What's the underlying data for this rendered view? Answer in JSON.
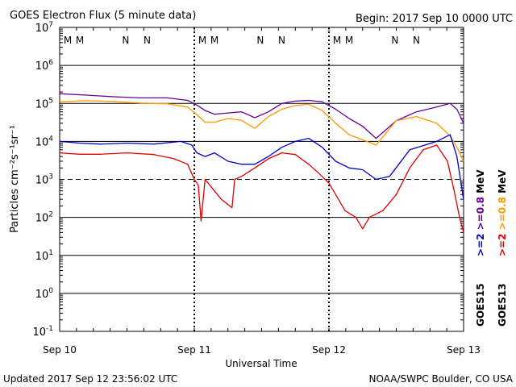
{
  "header": {
    "title": "GOES Electron Flux (5 minute data)",
    "begin": "Begin: 2017 Sep 10 0000 UTC"
  },
  "footer": {
    "updated": "Updated 2017 Sep 12 23:56:02 UTC",
    "credit": "NOAA/SWPC Boulder, CO USA"
  },
  "chart_data": {
    "type": "line",
    "title": "GOES Electron Flux (5 minute data)",
    "xlabel": "Universal Time",
    "ylabel": "Particles cm⁻²s⁻¹sr⁻¹",
    "yscale": "log",
    "ylim": [
      0.1,
      10000000
    ],
    "xlim": [
      0,
      3
    ],
    "x_unit": "days since 2017 Sep 10 0000 UTC",
    "x_ticks": [
      {
        "x": 0,
        "label": "Sep 10"
      },
      {
        "x": 1,
        "label": "Sep 11"
      },
      {
        "x": 2,
        "label": "Sep 12"
      },
      {
        "x": 3,
        "label": "Sep 13"
      }
    ],
    "y_ticks": [
      {
        "value": 0.1,
        "base": "10",
        "exp": "-1"
      },
      {
        "value": 1,
        "base": "10",
        "exp": "0"
      },
      {
        "value": 10,
        "base": "10",
        "exp": "1"
      },
      {
        "value": 100,
        "base": "10",
        "exp": "2"
      },
      {
        "value": 1000,
        "base": "10",
        "exp": "3"
      },
      {
        "value": 10000,
        "base": "10",
        "exp": "4"
      },
      {
        "value": 100000,
        "base": "10",
        "exp": "5"
      },
      {
        "value": 1000000,
        "base": "10",
        "exp": "6"
      },
      {
        "value": 10000000,
        "base": "10",
        "exp": "7"
      }
    ],
    "threshold_line": 1000,
    "noon_midnight_markers": [
      {
        "x": 0.06,
        "label": "M",
        "color": "#e00000"
      },
      {
        "x": 0.15,
        "label": "M",
        "color": "#0000cc"
      },
      {
        "x": 0.49,
        "label": "N",
        "color": "#e00000"
      },
      {
        "x": 0.65,
        "label": "N",
        "color": "#0000cc"
      },
      {
        "x": 1.06,
        "label": "M",
        "color": "#e00000"
      },
      {
        "x": 1.15,
        "label": "M",
        "color": "#0000cc"
      },
      {
        "x": 1.49,
        "label": "N",
        "color": "#e00000"
      },
      {
        "x": 1.65,
        "label": "N",
        "color": "#0000cc"
      },
      {
        "x": 2.06,
        "label": "M",
        "color": "#e00000"
      },
      {
        "x": 2.15,
        "label": "M",
        "color": "#0000cc"
      },
      {
        "x": 2.49,
        "label": "N",
        "color": "#e00000"
      },
      {
        "x": 2.65,
        "label": "N",
        "color": "#0000cc"
      }
    ],
    "legend": {
      "groups": [
        {
          "satellite": "GOES15",
          "low": ">=2",
          "high": ">=0.8",
          "unit": "MeV",
          "low_color": "#0000cc",
          "high_color": "#660099"
        },
        {
          "satellite": "GOES13",
          "low": ">=2",
          "high": ">=0.8",
          "unit": "MeV",
          "low_color": "#e00000",
          "high_color": "#ff9900"
        }
      ]
    },
    "series": [
      {
        "name": "GOES15 >=0.8 MeV",
        "color": "#660099",
        "x": [
          0,
          0.2,
          0.4,
          0.6,
          0.8,
          0.95,
          1.02,
          1.08,
          1.15,
          1.25,
          1.35,
          1.45,
          1.55,
          1.65,
          1.75,
          1.85,
          1.95,
          2.05,
          2.15,
          2.25,
          2.35,
          2.5,
          2.65,
          2.8,
          2.9,
          2.95,
          3.0
        ],
        "y": [
          180000,
          165000,
          150000,
          140000,
          140000,
          120000,
          90000,
          65000,
          52000,
          56000,
          60000,
          42000,
          60000,
          100000,
          115000,
          120000,
          110000,
          70000,
          40000,
          25000,
          12000,
          35000,
          60000,
          80000,
          100000,
          70000,
          30000
        ]
      },
      {
        "name": "GOES13 >=0.8 MeV",
        "color": "#ff9900",
        "x": [
          0,
          0.2,
          0.4,
          0.6,
          0.8,
          0.95,
          1.02,
          1.08,
          1.15,
          1.25,
          1.35,
          1.45,
          1.55,
          1.65,
          1.75,
          1.85,
          1.95,
          2.05,
          2.15,
          2.25,
          2.35,
          2.5,
          2.65,
          2.8,
          2.9,
          2.95,
          3.0
        ],
        "y": [
          110000,
          118000,
          112000,
          102000,
          98000,
          80000,
          50000,
          32000,
          32000,
          40000,
          36000,
          22000,
          45000,
          70000,
          88000,
          95000,
          65000,
          30000,
          15000,
          11000,
          8000,
          35000,
          45000,
          30000,
          14000,
          7000,
          3000
        ]
      },
      {
        "name": "GOES15 >=2 MeV",
        "color": "#0000cc",
        "x": [
          0,
          0.15,
          0.3,
          0.5,
          0.7,
          0.9,
          0.98,
          1.02,
          1.08,
          1.15,
          1.25,
          1.35,
          1.45,
          1.55,
          1.65,
          1.75,
          1.85,
          1.95,
          2.05,
          2.15,
          2.25,
          2.35,
          2.45,
          2.6,
          2.8,
          2.9,
          2.95,
          3.0
        ],
        "y": [
          10000,
          9000,
          8500,
          9000,
          8500,
          10000,
          8000,
          5000,
          4000,
          5000,
          3000,
          2500,
          2500,
          4000,
          7000,
          10000,
          12000,
          7000,
          3000,
          2000,
          1800,
          1000,
          1200,
          6000,
          10000,
          15000,
          4000,
          300
        ]
      },
      {
        "name": "GOES13 >=2 MeV",
        "color": "#e00000",
        "x": [
          0,
          0.15,
          0.3,
          0.5,
          0.7,
          0.85,
          0.95,
          1.0,
          1.03,
          1.05,
          1.08,
          1.15,
          1.2,
          1.28,
          1.3,
          1.35,
          1.45,
          1.55,
          1.65,
          1.75,
          1.85,
          1.92,
          2.0,
          2.05,
          2.12,
          2.2,
          2.25,
          2.3,
          2.4,
          2.5,
          2.6,
          2.7,
          2.8,
          2.88,
          2.93,
          2.97,
          3.0
        ],
        "y": [
          5000,
          4600,
          4600,
          5000,
          4500,
          3500,
          2500,
          1000,
          700,
          80,
          1000,
          500,
          300,
          180,
          1000,
          1200,
          2000,
          3500,
          5000,
          4500,
          2500,
          1500,
          800,
          400,
          150,
          100,
          50,
          100,
          150,
          400,
          2000,
          6000,
          8000,
          3000,
          500,
          100,
          40
        ]
      }
    ]
  }
}
